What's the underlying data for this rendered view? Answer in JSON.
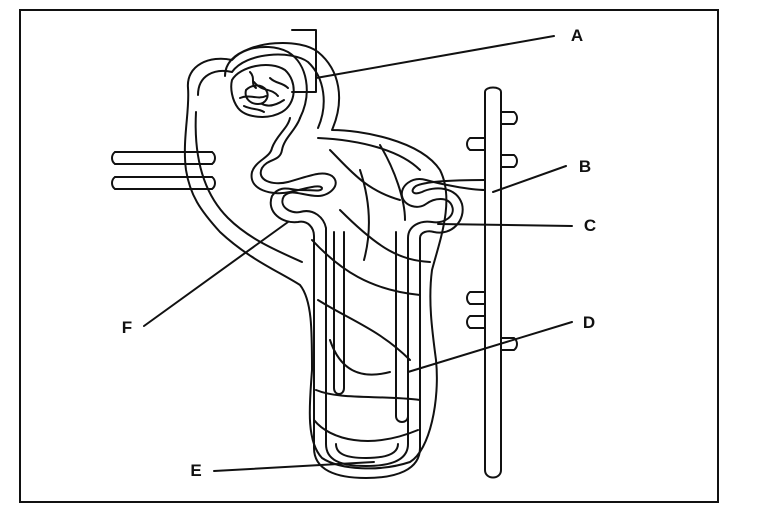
{
  "diagram": {
    "labels": {
      "a": "A",
      "b": "B",
      "c": "C",
      "d": "D",
      "e": "E",
      "f": "F"
    }
  }
}
